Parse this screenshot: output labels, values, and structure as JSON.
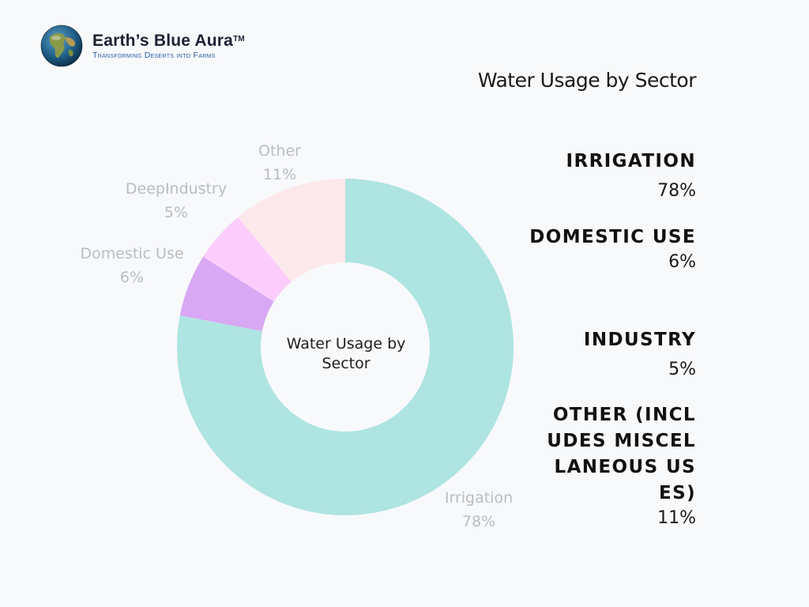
{
  "brand": {
    "name": "Earth’s Blue Aura",
    "trademark": "TM",
    "tagline": "Transforming Deserts into Farms"
  },
  "page_title": "Water Usage by Sector",
  "chart_data": {
    "type": "pie",
    "donut": true,
    "title": "Water Usage by Sector",
    "center_label": "Water Usage by Sector",
    "slices": [
      {
        "label": "Irrigation",
        "value": 78,
        "value_label": "78%",
        "color": "#aee4e2"
      },
      {
        "label": "Domestic Use",
        "value": 6,
        "value_label": "6%",
        "color": "#d8a8f4"
      },
      {
        "label": "DeepIndustry",
        "value": 5,
        "value_label": "5%",
        "color": "#fccdfc"
      },
      {
        "label": "Other",
        "value": 11,
        "value_label": "11%",
        "color": "#fde8ec"
      }
    ],
    "legend_position": "right",
    "legend": [
      {
        "name": "Irrigation",
        "value": "78%"
      },
      {
        "name": "Domestic Use",
        "value": "6%"
      },
      {
        "name": "Industry",
        "value": "5%"
      },
      {
        "name": "Other (includes miscellaneous uses)",
        "value": "11%"
      }
    ]
  },
  "colors": {
    "background": "#f8f9fb",
    "tagline": "#2a5aa8",
    "slice_label": "#b9bcc1"
  }
}
